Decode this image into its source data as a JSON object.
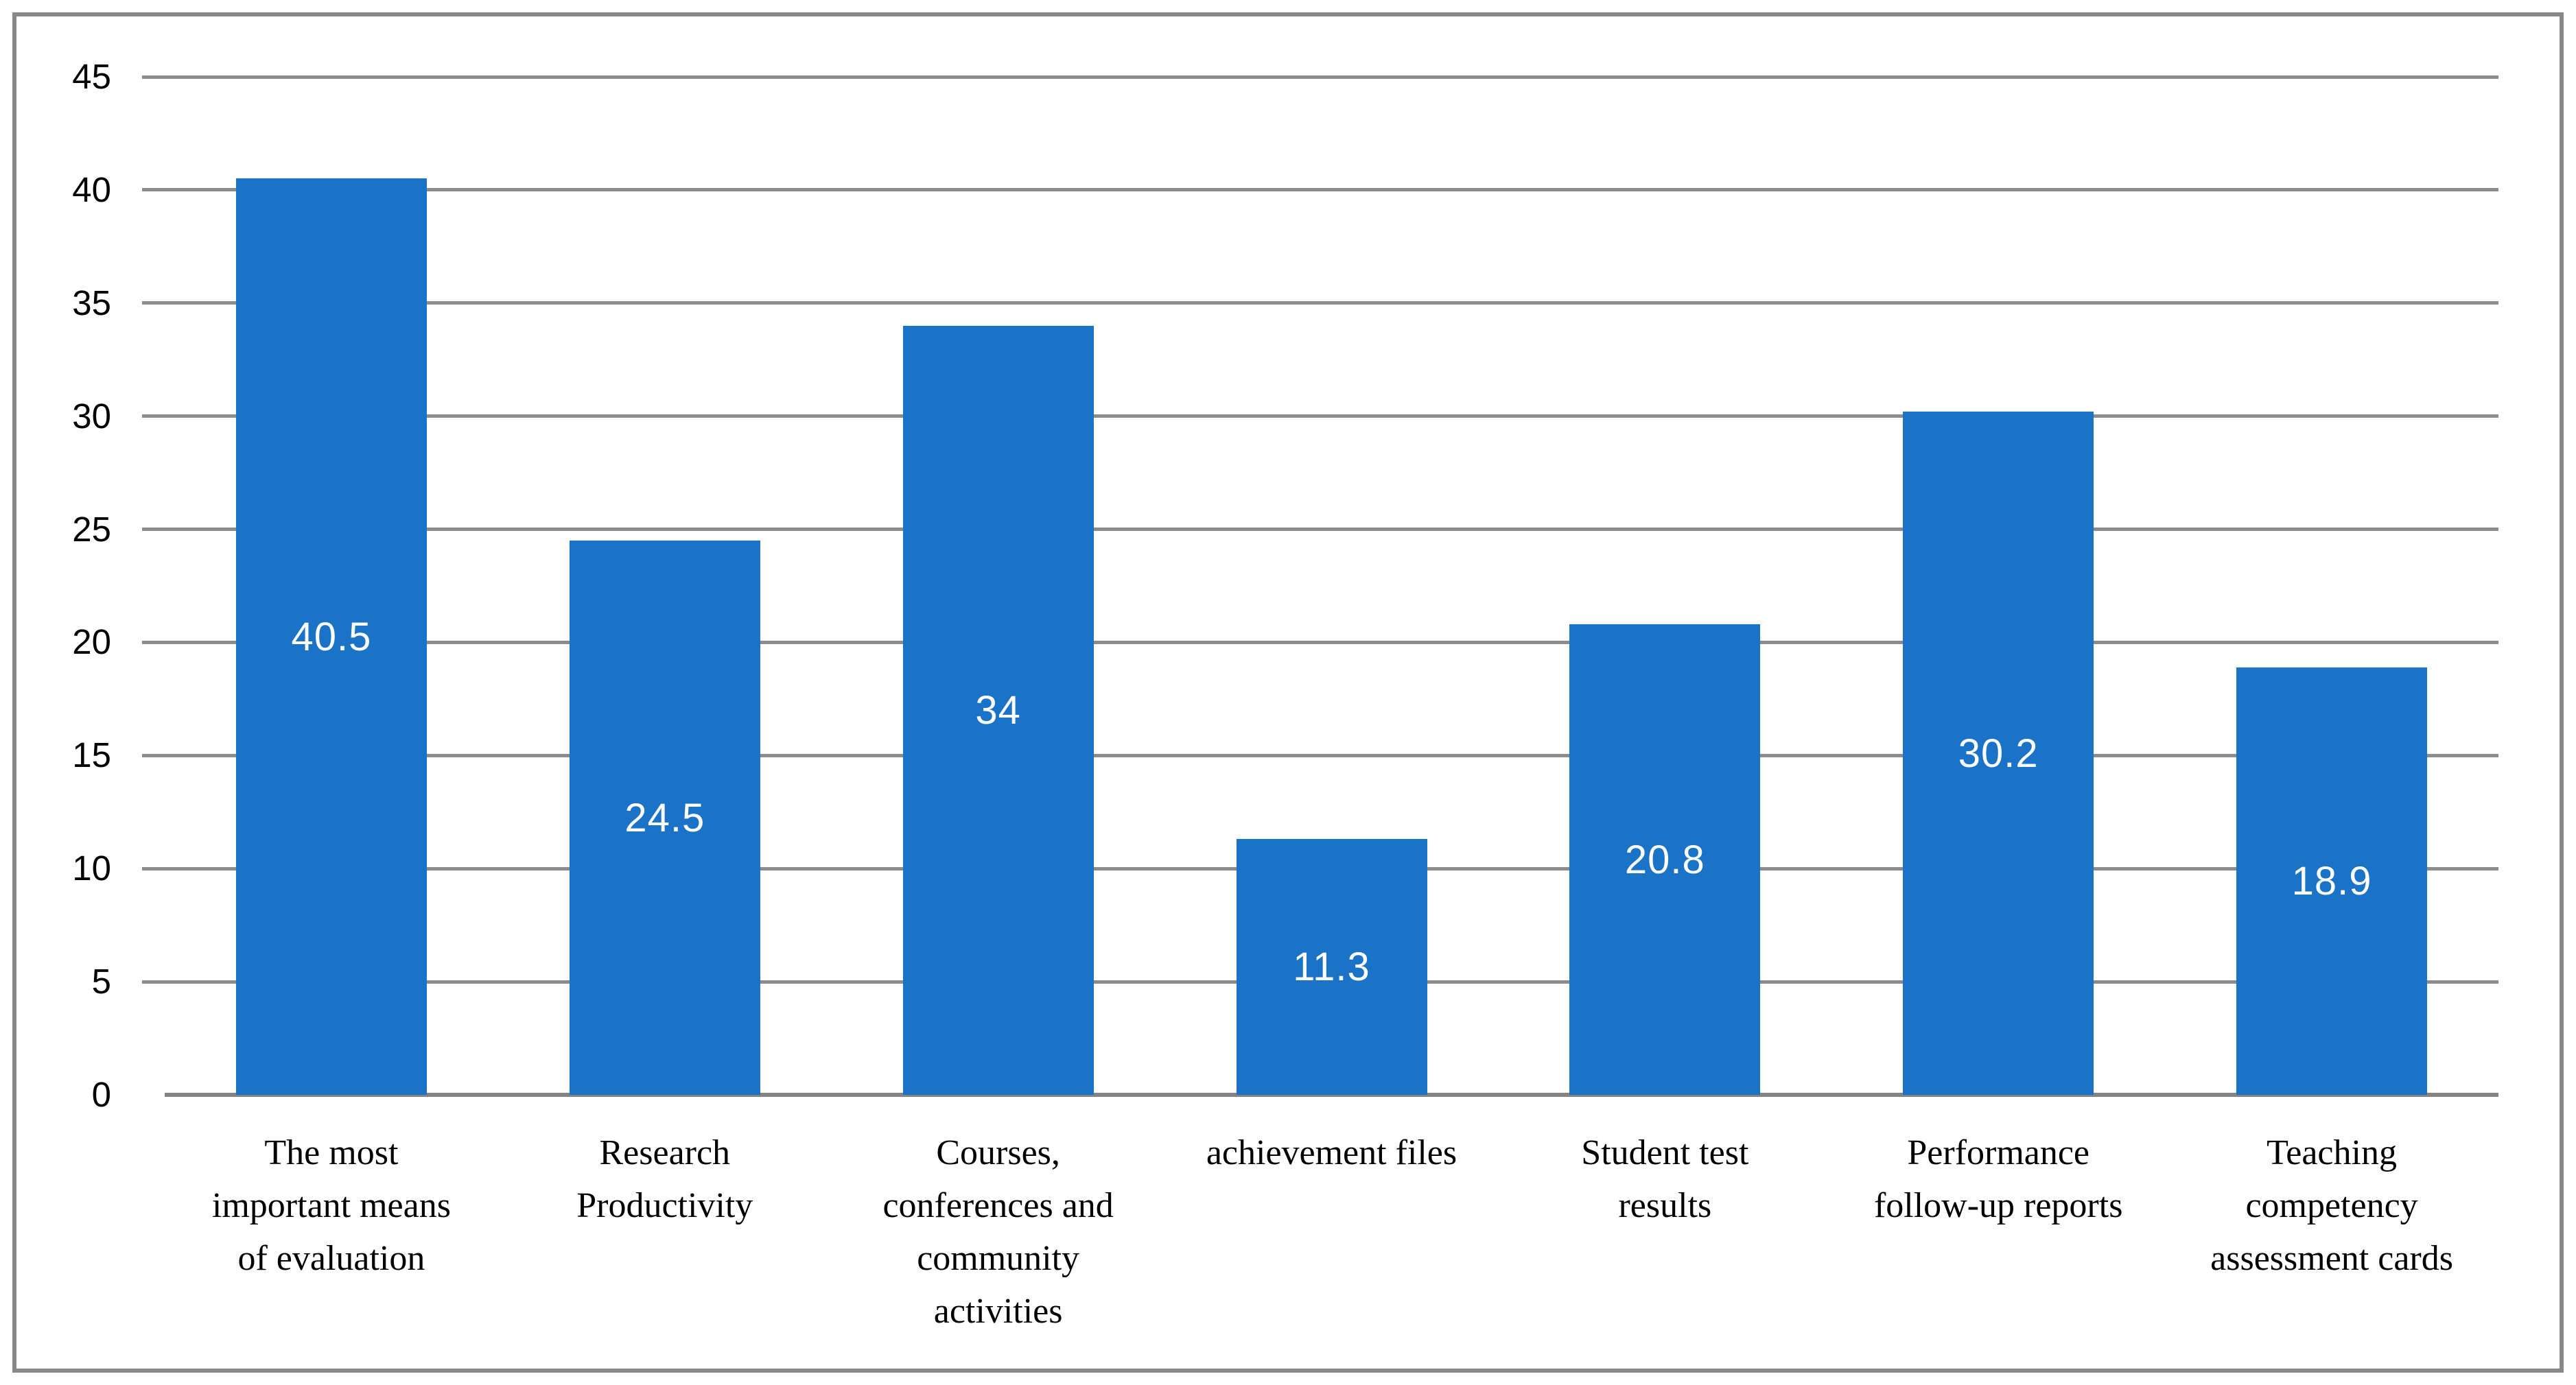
{
  "chart_data": {
    "type": "bar",
    "title": "",
    "xlabel": "",
    "ylabel": "",
    "categories": [
      "The most\nimportant means\nof evaluation",
      "Research\nProductivity",
      "Courses,\nconferences and\ncommunity\nactivities",
      "achievement files",
      "Student test\nresults",
      "Performance\nfollow-up reports",
      "Teaching\ncompetency\nassessment cards"
    ],
    "values": [
      40.5,
      24.5,
      34,
      11.3,
      20.8,
      30.2,
      18.9
    ],
    "value_labels": [
      "40.5",
      "24.5",
      "34",
      "11.3",
      "20.8",
      "30.2",
      "18.9"
    ],
    "yticks": [
      0,
      5,
      10,
      15,
      20,
      25,
      30,
      35,
      40,
      45
    ],
    "ylim": [
      0,
      45
    ],
    "grid": true,
    "legend": "none",
    "colors": {
      "bar": "#1B73C7",
      "value_label": "#FFFFFF",
      "gridline": "#8C8C8C",
      "axis_line": "#848484",
      "frame_border": "#898989",
      "tick_label": "#000000",
      "background": "#FFFFFF"
    }
  }
}
